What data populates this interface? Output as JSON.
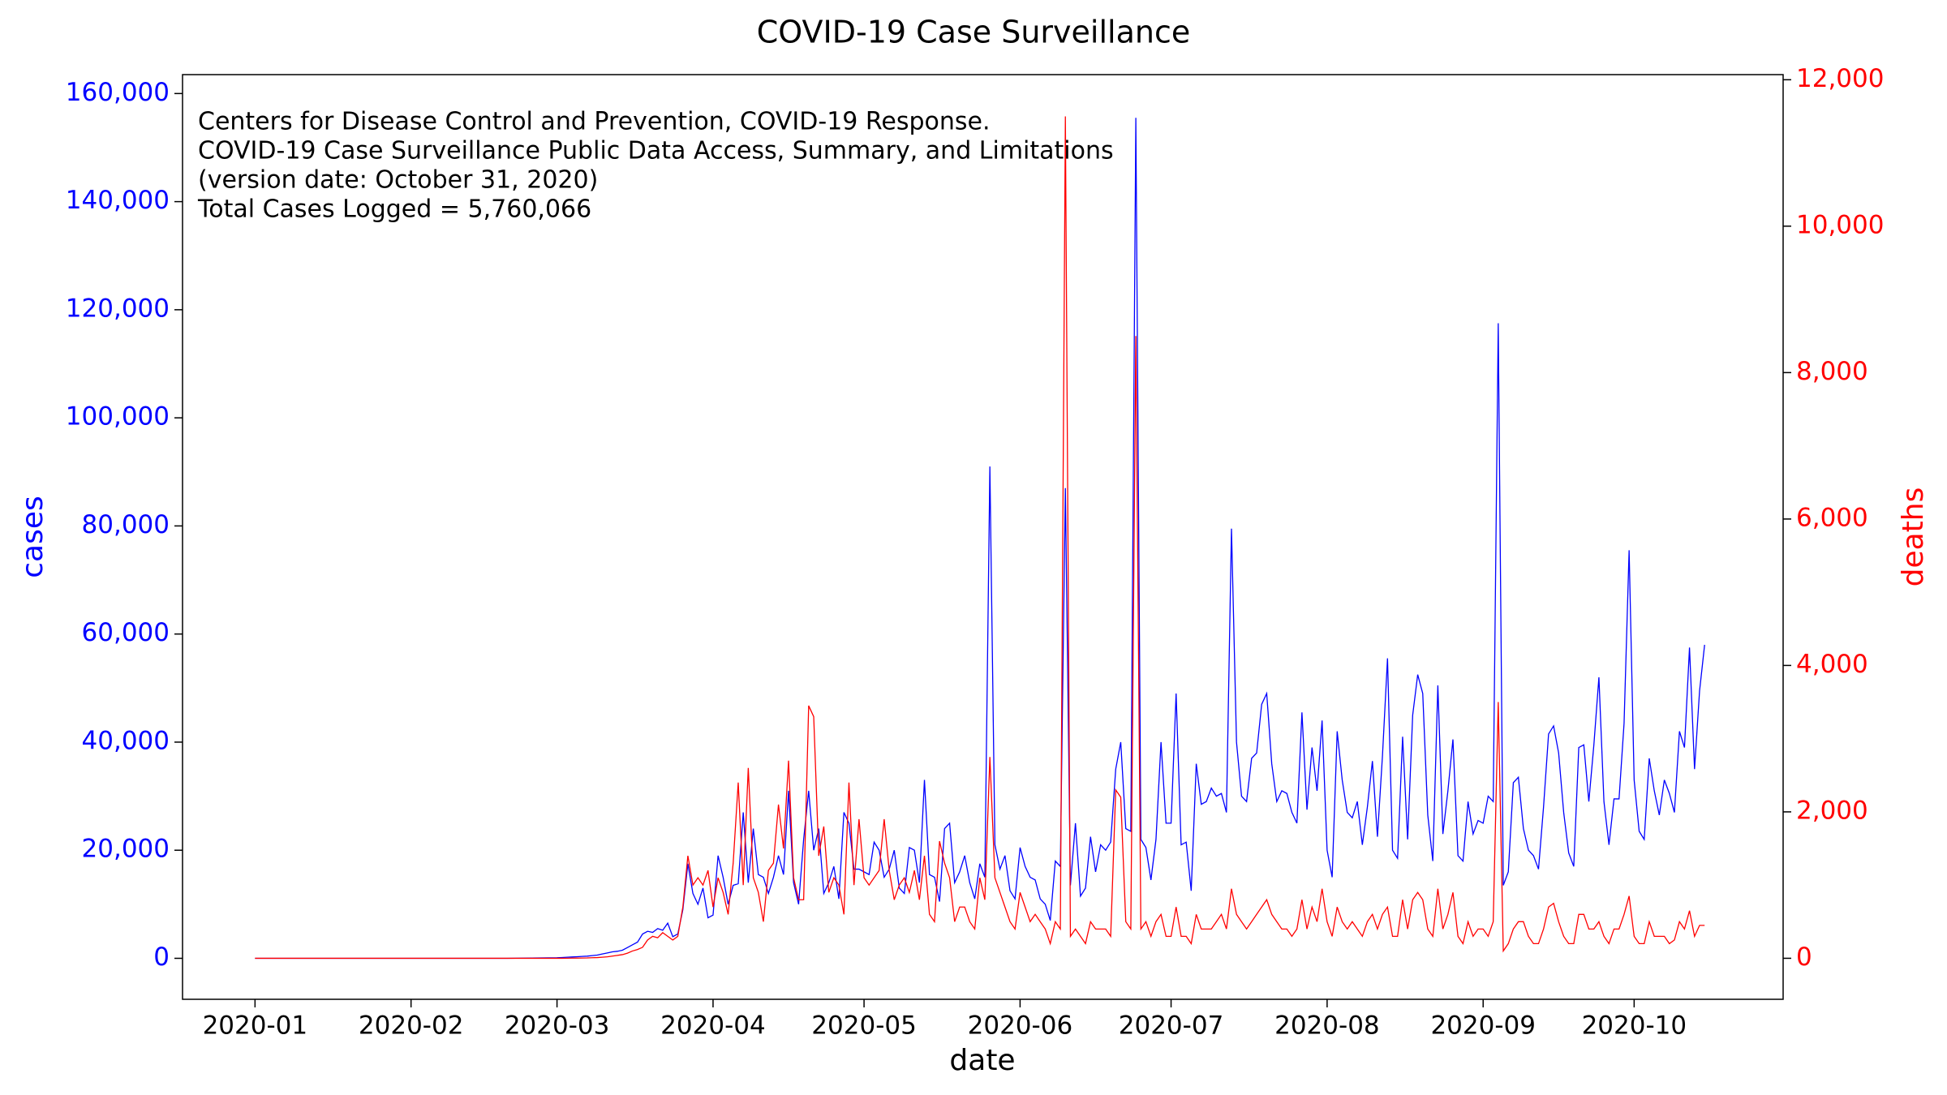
{
  "chart_data": {
    "type": "line",
    "title": "COVID-19 Case Surveillance",
    "annotation": [
      "Centers for Disease Control and Prevention, COVID-19 Response.",
      "COVID-19 Case Surveillance Public Data Access, Summary, and Limitations",
      "(version date: October 31, 2020)",
      "Total Cases Logged = 5,760,066"
    ],
    "xlabel": "date",
    "ylabel": "cases",
    "y2label": "deaths",
    "xlim": [
      -14.4,
      303.6
    ],
    "xticks": [
      {
        "value": 0,
        "label": "2020-01"
      },
      {
        "value": 31,
        "label": "2020-02"
      },
      {
        "value": 60,
        "label": "2020-03"
      },
      {
        "value": 91,
        "label": "2020-04"
      },
      {
        "value": 121,
        "label": "2020-05"
      },
      {
        "value": 152,
        "label": "2020-06"
      },
      {
        "value": 182,
        "label": "2020-07"
      },
      {
        "value": 213,
        "label": "2020-08"
      },
      {
        "value": 244,
        "label": "2020-09"
      },
      {
        "value": 274,
        "label": "2020-10"
      }
    ],
    "ylim": [
      -7580,
      163500
    ],
    "yticks": [
      0,
      {
        "value": 20000,
        "label": "20,000"
      },
      {
        "value": 40000,
        "label": "40,000"
      },
      {
        "value": 60000,
        "label": "60,000"
      },
      {
        "value": 80000,
        "label": "80,000"
      },
      {
        "value": 100000,
        "label": "100,000"
      },
      {
        "value": 120000,
        "label": "120,000"
      },
      {
        "value": 140000,
        "label": "140,000"
      },
      {
        "value": 160000,
        "label": "160,000"
      }
    ],
    "y2lim": [
      -560,
      12070
    ],
    "y2ticks": [
      0,
      {
        "value": 2000,
        "label": "2,000"
      },
      {
        "value": 4000,
        "label": "4,000"
      },
      {
        "value": 6000,
        "label": "6,000"
      },
      {
        "value": 8000,
        "label": "8,000"
      },
      {
        "value": 10000,
        "label": "10,000"
      },
      {
        "value": 12000,
        "label": "12,000"
      }
    ],
    "x": [
      0,
      10,
      20,
      30,
      40,
      50,
      60,
      61,
      62,
      63,
      64,
      65,
      66,
      67,
      68,
      69,
      70,
      71,
      72,
      73,
      74,
      75,
      76,
      77,
      78,
      79,
      80,
      81,
      82,
      83,
      84,
      85,
      86,
      87,
      88,
      89,
      90,
      91,
      92,
      93,
      94,
      95,
      96,
      97,
      98,
      99,
      100,
      101,
      102,
      103,
      104,
      105,
      106,
      107,
      108,
      109,
      110,
      111,
      112,
      113,
      114,
      115,
      116,
      117,
      118,
      119,
      120,
      121,
      122,
      123,
      124,
      125,
      126,
      127,
      128,
      129,
      130,
      131,
      132,
      133,
      134,
      135,
      136,
      137,
      138,
      139,
      140,
      141,
      142,
      143,
      144,
      145,
      146,
      147,
      148,
      149,
      150,
      151,
      152,
      153,
      154,
      155,
      156,
      157,
      158,
      159,
      160,
      161,
      162,
      163,
      164,
      165,
      166,
      167,
      168,
      169,
      170,
      171,
      172,
      173,
      174,
      175,
      176,
      177,
      178,
      179,
      180,
      181,
      182,
      183,
      184,
      185,
      186,
      187,
      188,
      189,
      190,
      191,
      192,
      193,
      194,
      195,
      196,
      197,
      198,
      199,
      200,
      201,
      202,
      203,
      204,
      205,
      206,
      207,
      208,
      209,
      210,
      211,
      212,
      213,
      214,
      215,
      216,
      217,
      218,
      219,
      220,
      221,
      222,
      223,
      224,
      225,
      226,
      227,
      228,
      229,
      230,
      231,
      232,
      233,
      234,
      235,
      236,
      237,
      238,
      239,
      240,
      241,
      242,
      243,
      244,
      245,
      246,
      247,
      248,
      249,
      250,
      251,
      252,
      253,
      254,
      255,
      256,
      257,
      258,
      259,
      260,
      261,
      262,
      263,
      264,
      265,
      266,
      267,
      268,
      269,
      270,
      271,
      272,
      273,
      274,
      275,
      276,
      277,
      278,
      279,
      280,
      281,
      282,
      283,
      284,
      285,
      286,
      287,
      288
    ],
    "series": [
      {
        "name": "cases",
        "color": "#0000ff",
        "axis": "y",
        "values": [
          0,
          0,
          0,
          0,
          0,
          0,
          100,
          150,
          200,
          250,
          300,
          350,
          400,
          500,
          600,
          800,
          1000,
          1200,
          1300,
          1500,
          2000,
          2500,
          3000,
          4500,
          5000,
          4800,
          5500,
          5200,
          6500,
          4000,
          4500,
          9000,
          17500,
          12000,
          10000,
          13000,
          7500,
          8000,
          19000,
          15000,
          10000,
          13500,
          13800,
          27000,
          14000,
          24000,
          15500,
          15000,
          12000,
          15000,
          19000,
          15500,
          31000,
          14000,
          10000,
          22000,
          31000,
          20000,
          24000,
          12000,
          14000,
          17000,
          11000,
          27000,
          25000,
          16500,
          16500,
          16000,
          15500,
          21500,
          20000,
          15000,
          16500,
          20000,
          13000,
          12000,
          20500,
          20000,
          14000,
          33000,
          15500,
          15000,
          10500,
          24000,
          25000,
          14000,
          16000,
          19000,
          14000,
          11000,
          17500,
          15000,
          91000,
          21000,
          16500,
          19000,
          12500,
          11000,
          20500,
          17000,
          15000,
          14500,
          11000,
          10000,
          7000,
          18000,
          17000,
          87000,
          13500,
          25000,
          11500,
          13000,
          22500,
          16000,
          21000,
          20000,
          21500,
          35000,
          40000,
          24000,
          23500,
          155500,
          22000,
          20500,
          14500,
          22000,
          40000,
          25000,
          25000,
          49000,
          21000,
          21500,
          12500,
          36000,
          28500,
          29000,
          31500,
          30000,
          30500,
          27000,
          79500,
          40000,
          30000,
          29000,
          37000,
          38000,
          47000,
          49000,
          36000,
          29000,
          31000,
          30500,
          27000,
          25000,
          45500,
          27500,
          39000,
          31000,
          44000,
          20000,
          15000,
          42000,
          33000,
          27000,
          26000,
          29000,
          21000,
          28000,
          36500,
          22500,
          37500,
          55500,
          20000,
          18500,
          41000,
          22000,
          45000,
          52500,
          49000,
          26500,
          18000,
          50500,
          23000,
          31000,
          40500,
          19000,
          18000,
          29000,
          23000,
          25500,
          25000,
          30000,
          29000,
          117500,
          13500,
          16000,
          32500,
          33500,
          24000,
          20000,
          19000,
          16500,
          28000,
          41500,
          43000,
          38000,
          27000,
          19500,
          17000,
          39000,
          39500,
          29000,
          39500,
          52000,
          29000,
          21000,
          29500,
          29500,
          43500,
          75500,
          33000,
          23500,
          22000,
          37000,
          31000,
          26500,
          33000,
          30500,
          27000,
          42000,
          39000,
          57500,
          35000,
          49500,
          58000
        ]
      },
      {
        "name": "deaths",
        "color": "#ff0000",
        "axis": "y2",
        "values": [
          0,
          0,
          0,
          0,
          0,
          0,
          0,
          0,
          1,
          2,
          3,
          4,
          5,
          8,
          10,
          15,
          20,
          30,
          40,
          50,
          70,
          100,
          120,
          150,
          250,
          300,
          280,
          350,
          300,
          250,
          300,
          700,
          1400,
          1000,
          1100,
          1000,
          1200,
          700,
          1100,
          900,
          600,
          1300,
          2400,
          1000,
          2600,
          1100,
          900,
          500,
          1200,
          1300,
          2100,
          1500,
          2700,
          1100,
          800,
          800,
          3450,
          3300,
          1400,
          1800,
          900,
          1100,
          1000,
          600,
          2400,
          1000,
          1900,
          1100,
          1000,
          1100,
          1200,
          1900,
          1200,
          800,
          1000,
          1100,
          900,
          1200,
          800,
          1400,
          600,
          500,
          1600,
          1300,
          1100,
          500,
          700,
          700,
          500,
          400,
          1100,
          800,
          2750,
          1100,
          900,
          700,
          500,
          400,
          900,
          700,
          500,
          600,
          500,
          400,
          200,
          500,
          400,
          11500,
          300,
          400,
          300,
          200,
          500,
          400,
          400,
          400,
          300,
          2300,
          2200,
          500,
          400,
          8500,
          400,
          500,
          300,
          500,
          600,
          300,
          300,
          700,
          300,
          300,
          200,
          600,
          400,
          400,
          400,
          500,
          600,
          400,
          950,
          600,
          500,
          400,
          500,
          600,
          700,
          800,
          600,
          500,
          400,
          400,
          300,
          400,
          800,
          400,
          700,
          500,
          950,
          500,
          300,
          700,
          500,
          400,
          500,
          400,
          300,
          500,
          600,
          400,
          600,
          700,
          300,
          300,
          800,
          400,
          800,
          900,
          800,
          400,
          300,
          950,
          400,
          600,
          900,
          300,
          200,
          500,
          300,
          400,
          400,
          300,
          500,
          3500,
          100,
          200,
          400,
          500,
          500,
          300,
          200,
          200,
          400,
          700,
          750,
          500,
          300,
          200,
          200,
          600,
          600,
          400,
          400,
          500,
          300,
          200,
          400,
          400,
          600,
          850,
          300,
          200,
          200,
          500,
          300,
          300,
          300,
          200,
          250,
          500,
          400,
          650,
          300,
          450,
          450
        ]
      }
    ]
  }
}
